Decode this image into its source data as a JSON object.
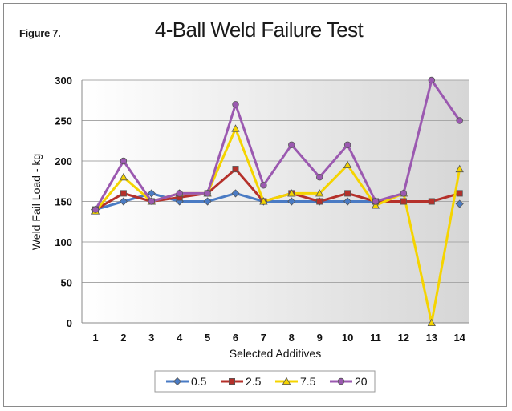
{
  "figure_label": "Figure 7.",
  "chart_data": {
    "type": "line",
    "title": "4-Ball Weld Failure Test",
    "xlabel": "Selected Additives",
    "ylabel": "Weld Fail Load - kg",
    "ylim": [
      0,
      300
    ],
    "yticks": [
      0,
      50,
      100,
      150,
      200,
      250,
      300
    ],
    "categories": [
      "1",
      "2",
      "3",
      "4",
      "5",
      "6",
      "7",
      "8",
      "9",
      "10",
      "11",
      "12",
      "13",
      "14"
    ],
    "grid": true,
    "legend_position": "bottom",
    "series": [
      {
        "name": "0.5",
        "color": "#4a7bc4",
        "marker": "diamond",
        "values": [
          140,
          150,
          160,
          150,
          150,
          160,
          150,
          150,
          150,
          150,
          150,
          null,
          null,
          147
        ]
      },
      {
        "name": "2.5",
        "color": "#b5302a",
        "marker": "square",
        "values": [
          140,
          160,
          150,
          155,
          160,
          190,
          150,
          160,
          150,
          160,
          150,
          150,
          150,
          160
        ]
      },
      {
        "name": "7.5",
        "color": "#f5d400",
        "marker": "triangle",
        "values": [
          138,
          180,
          150,
          160,
          160,
          240,
          150,
          160,
          160,
          195,
          145,
          160,
          0,
          190
        ]
      },
      {
        "name": "20",
        "color": "#9b59b0",
        "marker": "circle",
        "values": [
          140,
          200,
          150,
          160,
          160,
          270,
          170,
          220,
          180,
          220,
          150,
          160,
          300,
          250
        ]
      }
    ]
  }
}
